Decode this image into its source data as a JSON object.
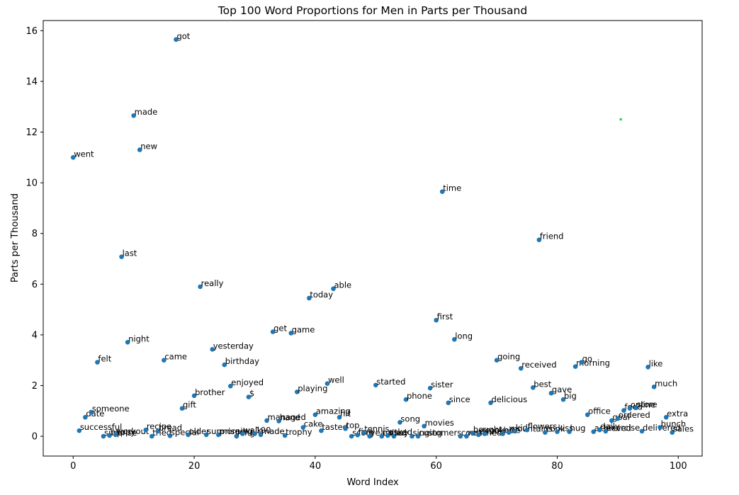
{
  "chart_data": {
    "type": "scatter",
    "title": "Top 100 Word Proportions for Men in Parts per Thousand",
    "xlabel": "Word Index",
    "ylabel": "Parts per Thousand",
    "xlim": [
      -4.95,
      103.95
    ],
    "ylim": [
      -0.78,
      16.4
    ],
    "xticks": [
      0,
      20,
      40,
      60,
      80,
      100
    ],
    "yticks": [
      0,
      2,
      4,
      6,
      8,
      10,
      12,
      14,
      16
    ],
    "grid": false,
    "point_color": "#1f77b4",
    "points": [
      {
        "x": 0,
        "y": 11.0,
        "word": "went"
      },
      {
        "x": 1,
        "y": 0.22,
        "word": "successful"
      },
      {
        "x": 2,
        "y": 0.75,
        "word": "date"
      },
      {
        "x": 3,
        "y": 0.95,
        "word": "someone"
      },
      {
        "x": 4,
        "y": 2.92,
        "word": "felt"
      },
      {
        "x": 5,
        "y": 0.0,
        "word": "surprise"
      },
      {
        "x": 6,
        "y": 0.03,
        "word": "happy"
      },
      {
        "x": 7,
        "y": 0.06,
        "word": "workout"
      },
      {
        "x": 8,
        "y": 7.08,
        "word": "last"
      },
      {
        "x": 9,
        "y": 3.71,
        "word": "night"
      },
      {
        "x": 10,
        "y": 12.65,
        "word": "made"
      },
      {
        "x": 11,
        "y": 11.3,
        "word": "new"
      },
      {
        "x": 12,
        "y": 0.25,
        "word": "recipe"
      },
      {
        "x": 13,
        "y": 0.0,
        "word": "tried"
      },
      {
        "x": 14,
        "y": 0.2,
        "word": "bread"
      },
      {
        "x": 15,
        "y": 3.0,
        "word": "came"
      },
      {
        "x": 16,
        "y": 0.02,
        "word": "special"
      },
      {
        "x": 17,
        "y": 15.65,
        "word": "got"
      },
      {
        "x": 18,
        "y": 1.1,
        "word": "gift"
      },
      {
        "x": 19,
        "y": 0.06,
        "word": "older"
      },
      {
        "x": 20,
        "y": 1.6,
        "word": "brother"
      },
      {
        "x": 21,
        "y": 5.9,
        "word": "really"
      },
      {
        "x": 22,
        "y": 0.06,
        "word": "surprised"
      },
      {
        "x": 23,
        "y": 3.43,
        "word": "yesterday"
      },
      {
        "x": 24,
        "y": 0.06,
        "word": "morning"
      },
      {
        "x": 25,
        "y": 2.82,
        "word": "birthday"
      },
      {
        "x": 26,
        "y": 1.98,
        "word": "enjoyed"
      },
      {
        "x": 27,
        "y": 0.0,
        "word": "long"
      },
      {
        "x": 28,
        "y": 0.1,
        "word": "walk"
      },
      {
        "x": 29,
        "y": 1.55,
        "word": "$"
      },
      {
        "x": 30,
        "y": 0.1,
        "word": "100"
      },
      {
        "x": 31,
        "y": 0.06,
        "word": "made"
      },
      {
        "x": 32,
        "y": 0.62,
        "word": "managed"
      },
      {
        "x": 33,
        "y": 4.12,
        "word": "get"
      },
      {
        "x": 34,
        "y": 0.6,
        "word": "hand"
      },
      {
        "x": 35,
        "y": 0.03,
        "word": "trophy"
      },
      {
        "x": 36,
        "y": 4.07,
        "word": "game"
      },
      {
        "x": 37,
        "y": 1.75,
        "word": "playing"
      },
      {
        "x": 38,
        "y": 0.35,
        "word": "cake"
      },
      {
        "x": 39,
        "y": 5.45,
        "word": "today"
      },
      {
        "x": 40,
        "y": 0.85,
        "word": "amazing"
      },
      {
        "x": 41,
        "y": 0.22,
        "word": "tasted"
      },
      {
        "x": 42,
        "y": 2.08,
        "word": "well"
      },
      {
        "x": 43,
        "y": 5.82,
        "word": "able"
      },
      {
        "x": 44,
        "y": 0.75,
        "word": "hit"
      },
      {
        "x": 45,
        "y": 0.3,
        "word": "top"
      },
      {
        "x": 46,
        "y": 0.0,
        "word": "score"
      },
      {
        "x": 47,
        "y": 0.05,
        "word": "five"
      },
      {
        "x": 48,
        "y": 0.15,
        "word": "tennis"
      },
      {
        "x": 49,
        "y": 0.0,
        "word": "years"
      },
      {
        "x": 50,
        "y": 2.02,
        "word": "started"
      },
      {
        "x": 51,
        "y": 0.0,
        "word": "called"
      },
      {
        "x": 52,
        "y": 0.03,
        "word": "asked"
      },
      {
        "x": 53,
        "y": 0.0,
        "word": "say"
      },
      {
        "x": 54,
        "y": 0.55,
        "word": "song"
      },
      {
        "x": 55,
        "y": 1.45,
        "word": "phone"
      },
      {
        "x": 56,
        "y": 0.0,
        "word": "singing"
      },
      {
        "x": 57,
        "y": 0.0,
        "word": "customers"
      },
      {
        "x": 58,
        "y": 0.4,
        "word": "movies"
      },
      {
        "x": 59,
        "y": 1.9,
        "word": "sister"
      },
      {
        "x": 60,
        "y": 4.58,
        "word": "first"
      },
      {
        "x": 61,
        "y": 9.65,
        "word": "time"
      },
      {
        "x": 62,
        "y": 1.32,
        "word": "since"
      },
      {
        "x": 63,
        "y": 3.82,
        "word": "long"
      },
      {
        "x": 64,
        "y": 0.0,
        "word": "cousin"
      },
      {
        "x": 65,
        "y": 0.0,
        "word": "watched"
      },
      {
        "x": 66,
        "y": 0.13,
        "word": "bought"
      },
      {
        "x": 67,
        "y": 0.06,
        "word": "dinner"
      },
      {
        "x": 68,
        "y": 0.1,
        "word": "cooked"
      },
      {
        "x": 69,
        "y": 1.32,
        "word": "delicious"
      },
      {
        "x": 70,
        "y": 3.0,
        "word": "going"
      },
      {
        "x": 71,
        "y": 0.1,
        "word": "hike"
      },
      {
        "x": 72,
        "y": 0.15,
        "word": "mountains"
      },
      {
        "x": 73,
        "y": 0.2,
        "word": "kid"
      },
      {
        "x": 74,
        "y": 2.68,
        "word": "received"
      },
      {
        "x": 75,
        "y": 0.25,
        "word": "flowers"
      },
      {
        "x": 76,
        "y": 1.92,
        "word": "best"
      },
      {
        "x": 77,
        "y": 7.75,
        "word": "friend"
      },
      {
        "x": 78,
        "y": 0.15,
        "word": "cook"
      },
      {
        "x": 79,
        "y": 1.7,
        "word": "gave"
      },
      {
        "x": 80,
        "y": 0.18,
        "word": "kiss"
      },
      {
        "x": 81,
        "y": 1.45,
        "word": "big"
      },
      {
        "x": 82,
        "y": 0.18,
        "word": "hug"
      },
      {
        "x": 83,
        "y": 2.75,
        "word": "morning"
      },
      {
        "x": 84,
        "y": 2.92,
        "word": "go"
      },
      {
        "x": 85,
        "y": 0.85,
        "word": "office"
      },
      {
        "x": 86,
        "y": 0.18,
        "word": "achieved"
      },
      {
        "x": 87,
        "y": 0.25,
        "word": "daily"
      },
      {
        "x": 88,
        "y": 0.2,
        "word": "exercise"
      },
      {
        "x": 89,
        "y": 0.62,
        "word": "goal"
      },
      {
        "x": 90,
        "y": 0.7,
        "word": "ordered"
      },
      {
        "x": 91,
        "y": 1.02,
        "word": "food"
      },
      {
        "x": 92,
        "y": 1.1,
        "word": "online"
      },
      {
        "x": 93,
        "y": 1.12,
        "word": "store"
      },
      {
        "x": 94,
        "y": 0.2,
        "word": "delivered"
      },
      {
        "x": 95,
        "y": 2.73,
        "word": "like"
      },
      {
        "x": 96,
        "y": 1.95,
        "word": "much"
      },
      {
        "x": 97,
        "y": 0.35,
        "word": "bunch"
      },
      {
        "x": 98,
        "y": 0.75,
        "word": "extra"
      },
      {
        "x": 99,
        "y": 0.15,
        "word": "sales"
      }
    ],
    "highlight_point": {
      "x": 90.5,
      "y": 12.5,
      "color": "#2ecc71"
    }
  }
}
